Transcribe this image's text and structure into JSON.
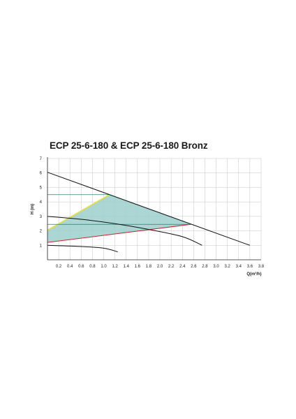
{
  "chart_data": {
    "type": "line",
    "title": "ECP 25-6-180 & ECP 25-6-180 Bronz",
    "xlabel": "Q(m³/h)",
    "ylabel": "H (m)",
    "xlim": [
      0,
      3.8
    ],
    "ylim": [
      0,
      7
    ],
    "x_ticks": [
      "0.2",
      "0.4",
      "0.6",
      "0.8",
      "1.0",
      "1.2",
      "1.4",
      "1.6",
      "1.8",
      "2.0",
      "2.2",
      "2.4",
      "2.6",
      "2.8",
      "3.0",
      "3.2",
      "3.4",
      "3.6",
      "3.8"
    ],
    "y_ticks": [
      "1",
      "2",
      "3",
      "4",
      "5",
      "6",
      "7"
    ],
    "grid": true,
    "colors": {
      "curve": "#111111",
      "fill": "#9ccfcd",
      "upper_edge": "#e8e23a",
      "lower_edge": "#c8282e",
      "horizontal_lines": "#2e7d6e"
    },
    "series": [
      {
        "points": [
          [
            0,
            6.05
          ],
          [
            3.6,
            1.0
          ]
        ]
      },
      {
        "points": [
          [
            0,
            3.0
          ],
          [
            0.6,
            2.8
          ],
          [
            1.2,
            2.5
          ],
          [
            1.8,
            2.1
          ],
          [
            2.4,
            1.6
          ],
          [
            2.75,
            1.0
          ]
        ]
      },
      {
        "points": [
          [
            0,
            1.0
          ],
          [
            0.6,
            0.92
          ],
          [
            1.0,
            0.8
          ],
          [
            1.25,
            0.55
          ]
        ]
      }
    ],
    "shaded_region": [
      [
        0,
        1.2
      ],
      [
        0,
        2.05
      ],
      [
        1.1,
        4.5
      ],
      [
        2.55,
        2.45
      ]
    ],
    "reference_lines": [
      {
        "y": 4.5,
        "x_start": 0,
        "x_end": 1.1
      },
      {
        "y": 2.45,
        "x_start": 0,
        "x_end": 2.55
      }
    ]
  }
}
